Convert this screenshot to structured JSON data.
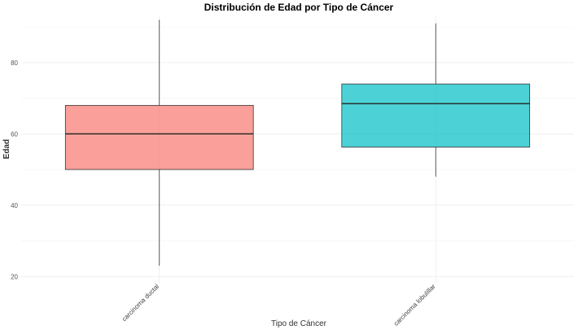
{
  "chart_data": {
    "type": "boxplot",
    "title": "Distribución de Edad por Tipo de Cáncer",
    "xlabel": "Tipo de Cáncer",
    "ylabel": "Edad",
    "ylim": [
      18,
      93
    ],
    "yticks": [
      20,
      40,
      60,
      80
    ],
    "grid": true,
    "legend": "none",
    "categories": [
      "carcinoma ductal",
      "carcinoma lobulillar"
    ],
    "boxes": [
      {
        "category": "carcinoma ductal",
        "min": 23,
        "q1": 50,
        "median": 60,
        "q3": 68,
        "max": 92,
        "fill": "#f8766d"
      },
      {
        "category": "carcinoma lobulillar",
        "min": 48,
        "q1": 56.3,
        "median": 68.5,
        "q3": 74,
        "max": 91,
        "fill": "#00bfc4"
      }
    ]
  }
}
